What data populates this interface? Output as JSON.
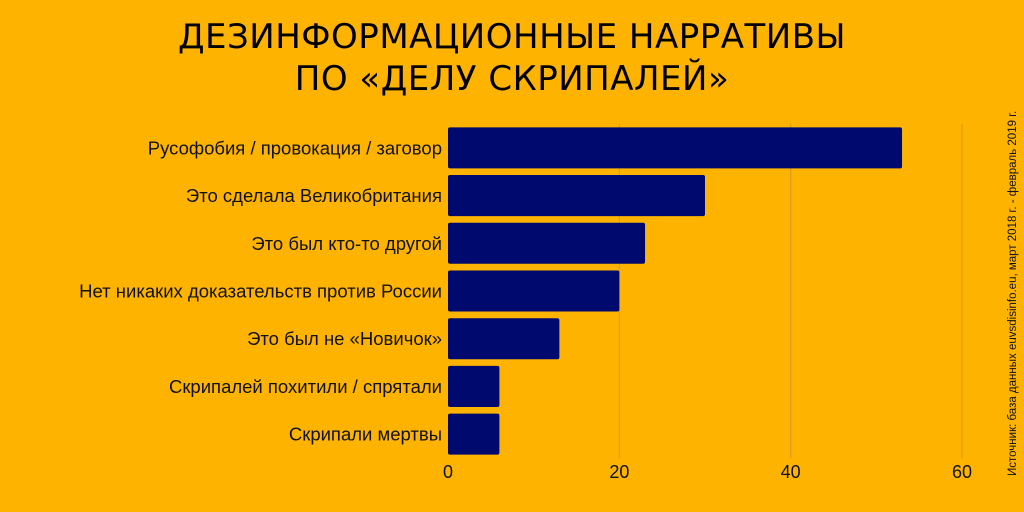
{
  "chart_data": {
    "type": "bar",
    "orientation": "horizontal",
    "title_lines": [
      "ДЕЗИНФОРМАЦИОННЫЕ НАРРАТИВЫ",
      "ПО «ДЕЛУ СКРИПАЛЕЙ»"
    ],
    "categories": [
      "Русофобия / провокация / заговор",
      "Это сделала Великобритания",
      "Это был кто-то другой",
      "Нет никаких доказательств против России",
      "Это был не «Новичок»",
      "Скрипалей похитили / спрятали",
      "Скрипали мертвы"
    ],
    "values": [
      53,
      30,
      23,
      20,
      13,
      6,
      6
    ],
    "xlim": [
      0,
      60
    ],
    "x_ticks": [
      0,
      20,
      40,
      60
    ],
    "grid": true,
    "bar_color": "#000A6E",
    "source_note": "Источник: база данных euvsdisinfo.eu, март 2018 г. - февраль 2019 г."
  },
  "colors": {
    "background": "#FDB300",
    "gridline": "#D49A1C"
  }
}
